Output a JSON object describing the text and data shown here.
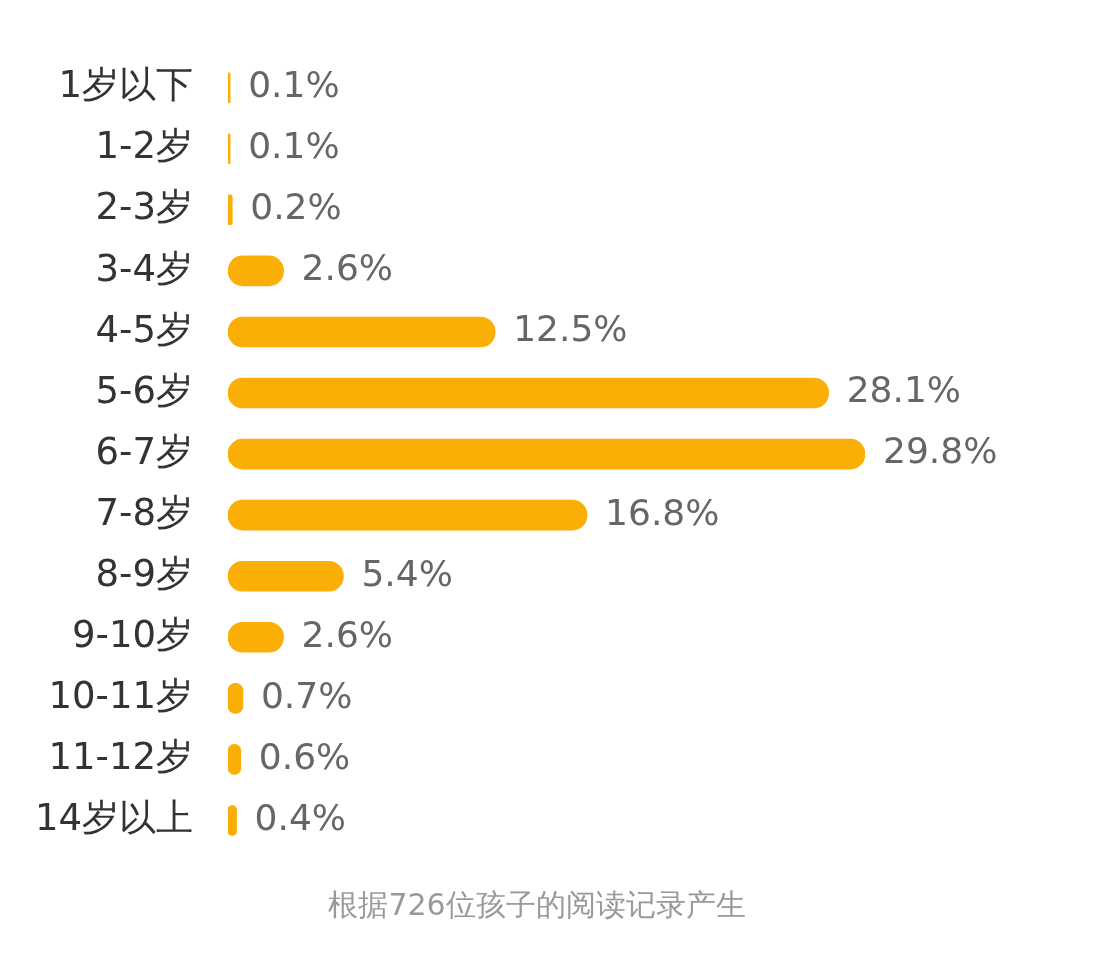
{
  "chart_data": {
    "type": "bar",
    "orientation": "horizontal",
    "categories": [
      "1岁以下",
      "1-2岁",
      "2-3岁",
      "3-4岁",
      "4-5岁",
      "5-6岁",
      "6-7岁",
      "7-8岁",
      "8-9岁",
      "9-10岁",
      "10-11岁",
      "11-12岁",
      "14岁以上"
    ],
    "values": [
      0.1,
      0.1,
      0.2,
      2.6,
      12.5,
      28.1,
      29.8,
      16.8,
      5.4,
      2.6,
      0.7,
      0.6,
      0.4
    ],
    "value_labels": [
      "0.1%",
      "0.1%",
      "0.2%",
      "2.6%",
      "12.5%",
      "28.1%",
      "29.8%",
      "16.8%",
      "5.4%",
      "2.6%",
      "0.7%",
      "0.6%",
      "0.4%"
    ],
    "color": "#fbae05",
    "tick_labels": "y",
    "annotations": [
      "根据726位孩子的阅读记录产生"
    ]
  }
}
